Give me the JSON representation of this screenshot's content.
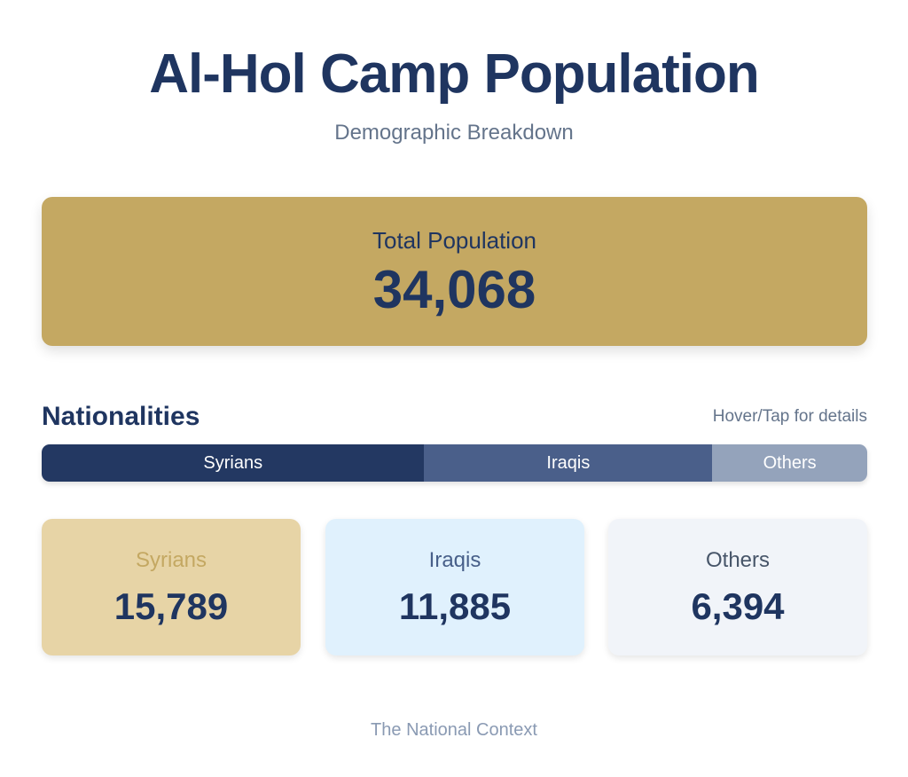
{
  "header": {
    "title": "Al-Hol Camp Population",
    "subtitle": "Demographic Breakdown"
  },
  "total": {
    "label": "Total Population",
    "value": "34,068",
    "color": "#c4a862"
  },
  "nationalities": {
    "title": "Nationalities",
    "hint": "Hover/Tap for details"
  },
  "chart_data": {
    "type": "bar",
    "categories": [
      "Syrians",
      "Iraqis",
      "Others"
    ],
    "values": [
      15789,
      11885,
      6394
    ],
    "total": 34068,
    "segment_colors": [
      "#233862",
      "#4a5f8a",
      "#94a3bb"
    ],
    "value_labels": [
      "15,789",
      "11,885",
      "6,394"
    ]
  },
  "cards": [
    {
      "label": "Syrians",
      "value": "15,789",
      "bg": "#e7d4a6",
      "label_color": "#c4a862"
    },
    {
      "label": "Iraqis",
      "value": "11,885",
      "bg": "#e0f1fd",
      "label_color": "#475f89"
    },
    {
      "label": "Others",
      "value": "6,394",
      "bg": "#f1f4f9",
      "label_color": "#475569"
    }
  ],
  "footer": {
    "text": "The National Context"
  }
}
